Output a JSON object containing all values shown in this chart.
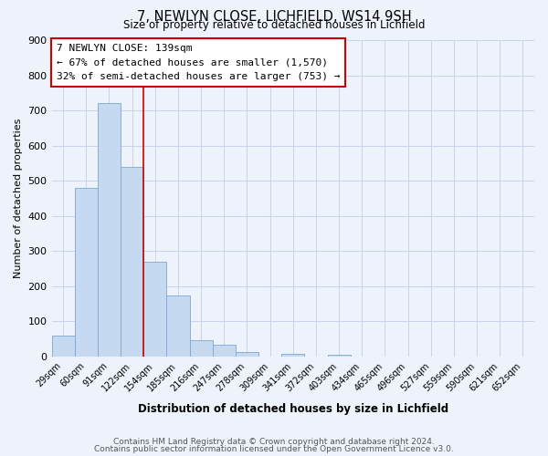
{
  "title": "7, NEWLYN CLOSE, LICHFIELD, WS14 9SH",
  "subtitle": "Size of property relative to detached houses in Lichfield",
  "xlabel": "Distribution of detached houses by size in Lichfield",
  "ylabel": "Number of detached properties",
  "bar_labels": [
    "29sqm",
    "60sqm",
    "91sqm",
    "122sqm",
    "154sqm",
    "185sqm",
    "216sqm",
    "247sqm",
    "278sqm",
    "309sqm",
    "341sqm",
    "372sqm",
    "403sqm",
    "434sqm",
    "465sqm",
    "496sqm",
    "527sqm",
    "559sqm",
    "590sqm",
    "621sqm",
    "652sqm"
  ],
  "bar_values": [
    60,
    480,
    720,
    540,
    270,
    175,
    48,
    35,
    14,
    0,
    8,
    0,
    5,
    0,
    0,
    0,
    0,
    0,
    0,
    0,
    0
  ],
  "bar_color": "#c5d9f1",
  "bar_edge_color": "#7ba7d4",
  "vline_color": "#cc0000",
  "ylim": [
    0,
    900
  ],
  "yticks": [
    0,
    100,
    200,
    300,
    400,
    500,
    600,
    700,
    800,
    900
  ],
  "annotation_text": "7 NEWLYN CLOSE: 139sqm\n← 67% of detached houses are smaller (1,570)\n32% of semi-detached houses are larger (753) →",
  "annotation_box_color": "#ffffff",
  "annotation_box_edge": "#cc0000",
  "footer_line1": "Contains HM Land Registry data © Crown copyright and database right 2024.",
  "footer_line2": "Contains public sector information licensed under the Open Government Licence v3.0.",
  "grid_color": "#c8d4e8",
  "background_color": "#eef2fa"
}
